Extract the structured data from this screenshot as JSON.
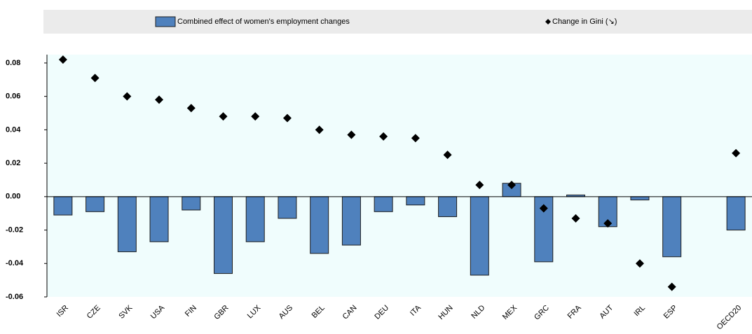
{
  "chart_data": {
    "type": "bar",
    "categories": [
      "ISR",
      "CZE",
      "SVK",
      "USA",
      "FIN",
      "GBR",
      "LUX",
      "AUS",
      "BEL",
      "CAN",
      "DEU",
      "ITA",
      "HUN",
      "NLD",
      "MEX",
      "GRC",
      "FRA",
      "AUT",
      "IRL",
      "ESP",
      null,
      "OECD20"
    ],
    "series": [
      {
        "name": "Combined effect of women's employment changes",
        "type": "bar",
        "color": "#4f81bd",
        "values": [
          -0.011,
          -0.009,
          -0.033,
          -0.027,
          -0.008,
          -0.046,
          -0.027,
          -0.013,
          -0.034,
          -0.029,
          -0.009,
          -0.005,
          -0.012,
          -0.047,
          0.008,
          -0.039,
          0.001,
          -0.018,
          -0.002,
          -0.036,
          null,
          -0.02
        ]
      },
      {
        "name": "Change in Gini (↘)",
        "type": "scatter",
        "color": "#000000",
        "values": [
          0.082,
          0.071,
          0.06,
          0.058,
          0.053,
          0.048,
          0.048,
          0.047,
          0.04,
          0.037,
          0.036,
          0.035,
          0.025,
          0.007,
          0.007,
          -0.007,
          -0.013,
          -0.016,
          -0.04,
          -0.054,
          null,
          0.026
        ]
      }
    ],
    "ylim": [
      -0.06,
      0.085
    ],
    "yticks": [
      0.08,
      0.06,
      0.04,
      0.02,
      {
        "value": 0,
        "label": "0.00"
      },
      -0.02,
      -0.04,
      -0.06
    ],
    "legend": "top"
  }
}
